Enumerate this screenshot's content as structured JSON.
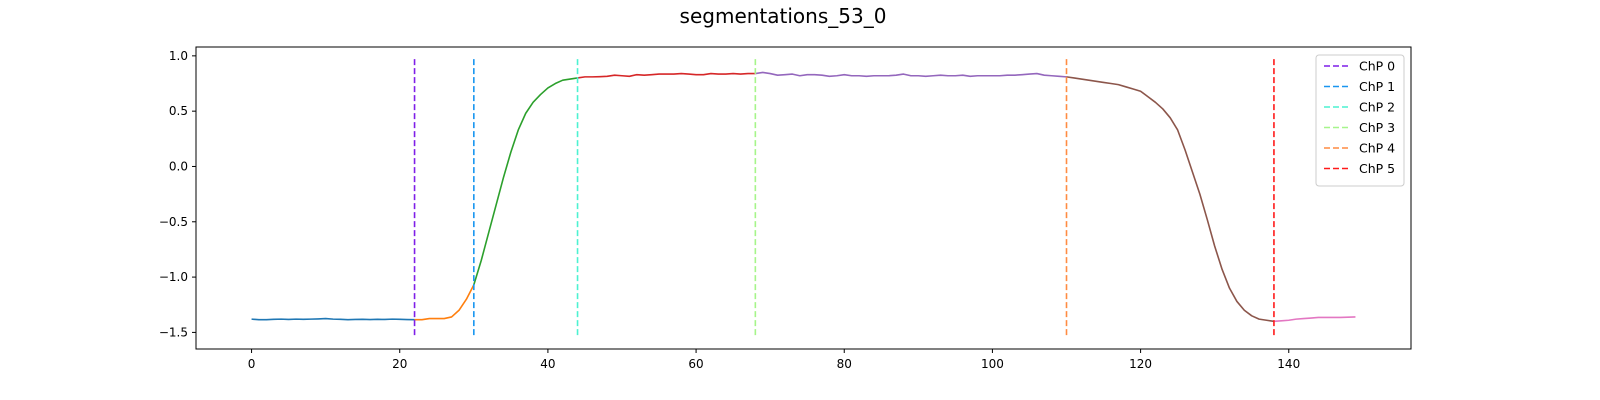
{
  "chart_data": {
    "type": "line",
    "title": "segmentations_53_0",
    "xlabel": "",
    "ylabel": "",
    "xlim": [
      -7.5,
      156.5
    ],
    "ylim": [
      -1.65,
      1.08
    ],
    "xticks": [
      0,
      20,
      40,
      60,
      80,
      100,
      120,
      140
    ],
    "xtick_labels": [
      "0",
      "20",
      "40",
      "60",
      "80",
      "100",
      "120",
      "140"
    ],
    "yticks": [
      1.0,
      0.5,
      0.0,
      -0.5,
      -1.0,
      -1.5
    ],
    "ytick_labels": [
      "1.0",
      "0.5",
      "0.0",
      "−0.5",
      "−1.0",
      "−1.5"
    ],
    "grid": false,
    "legend_position": "top-right",
    "segments": [
      {
        "color": "#1f77b4",
        "x": [
          0,
          1,
          2,
          3,
          4,
          5,
          6,
          7,
          8,
          9,
          10,
          11,
          12,
          13,
          14,
          15,
          16,
          17,
          18,
          19,
          20,
          21,
          22
        ],
        "y": [
          -1.38,
          -1.385,
          -1.385,
          -1.382,
          -1.38,
          -1.383,
          -1.38,
          -1.382,
          -1.38,
          -1.378,
          -1.375,
          -1.38,
          -1.382,
          -1.385,
          -1.383,
          -1.382,
          -1.384,
          -1.382,
          -1.383,
          -1.38,
          -1.382,
          -1.384,
          -1.385
        ]
      },
      {
        "color": "#ff7f0e",
        "x": [
          22,
          23,
          24,
          25,
          26,
          27,
          28,
          29,
          30
        ],
        "y": [
          -1.385,
          -1.385,
          -1.375,
          -1.375,
          -1.375,
          -1.36,
          -1.3,
          -1.2,
          -1.07
        ]
      },
      {
        "color": "#2ca02c",
        "x": [
          30,
          31,
          32,
          33,
          34,
          35,
          36,
          37,
          38,
          39,
          40,
          41,
          42,
          43,
          44
        ],
        "y": [
          -1.07,
          -0.85,
          -0.6,
          -0.35,
          -0.1,
          0.13,
          0.33,
          0.48,
          0.58,
          0.65,
          0.71,
          0.75,
          0.78,
          0.79,
          0.8
        ]
      },
      {
        "color": "#d62728",
        "x": [
          44,
          45,
          46,
          47,
          48,
          49,
          50,
          51,
          52,
          53,
          54,
          55,
          56,
          57,
          58,
          59,
          60,
          61,
          62,
          63,
          64,
          65,
          66,
          67,
          68
        ],
        "y": [
          0.8,
          0.81,
          0.81,
          0.812,
          0.815,
          0.825,
          0.82,
          0.815,
          0.83,
          0.825,
          0.83,
          0.835,
          0.835,
          0.835,
          0.84,
          0.835,
          0.83,
          0.83,
          0.84,
          0.835,
          0.835,
          0.84,
          0.835,
          0.84,
          0.84
        ]
      },
      {
        "color": "#9467bd",
        "x": [
          68,
          69,
          70,
          71,
          72,
          73,
          74,
          75,
          76,
          77,
          78,
          79,
          80,
          81,
          82,
          83,
          84,
          85,
          86,
          87,
          88,
          89,
          90,
          91,
          92,
          93,
          94,
          95,
          96,
          97,
          98,
          99,
          100,
          101,
          102,
          103,
          104,
          105,
          106,
          107,
          108,
          109,
          110
        ],
        "y": [
          0.84,
          0.85,
          0.84,
          0.825,
          0.83,
          0.835,
          0.82,
          0.83,
          0.83,
          0.825,
          0.815,
          0.82,
          0.83,
          0.82,
          0.82,
          0.815,
          0.82,
          0.82,
          0.82,
          0.825,
          0.835,
          0.82,
          0.82,
          0.815,
          0.82,
          0.825,
          0.82,
          0.82,
          0.825,
          0.815,
          0.82,
          0.82,
          0.82,
          0.82,
          0.825,
          0.825,
          0.83,
          0.835,
          0.84,
          0.825,
          0.82,
          0.815,
          0.81
        ]
      },
      {
        "color": "#8c564b",
        "x": [
          110,
          111,
          112,
          113,
          114,
          115,
          116,
          117,
          118,
          119,
          120,
          121,
          122,
          123,
          124,
          125,
          126,
          127,
          128,
          129,
          130,
          131,
          132,
          133,
          134,
          135,
          136,
          137,
          138
        ],
        "y": [
          0.81,
          0.8,
          0.79,
          0.78,
          0.77,
          0.76,
          0.75,
          0.74,
          0.72,
          0.7,
          0.68,
          0.63,
          0.58,
          0.52,
          0.44,
          0.33,
          0.15,
          -0.05,
          -0.25,
          -0.48,
          -0.72,
          -0.93,
          -1.1,
          -1.22,
          -1.3,
          -1.35,
          -1.38,
          -1.39,
          -1.4
        ]
      },
      {
        "color": "#e377c2",
        "x": [
          138,
          139,
          140,
          141,
          142,
          143,
          144,
          145,
          146,
          147,
          148,
          149
        ],
        "y": [
          -1.4,
          -1.395,
          -1.39,
          -1.38,
          -1.375,
          -1.37,
          -1.365,
          -1.365,
          -1.365,
          -1.365,
          -1.362,
          -1.36
        ]
      }
    ],
    "changepoints": [
      {
        "name": "ChP 0",
        "x": 22,
        "color": "#7f1ee8"
      },
      {
        "name": "ChP 1",
        "x": 30,
        "color": "#1996f0"
      },
      {
        "name": "ChP 2",
        "x": 44,
        "color": "#4cf2d1"
      },
      {
        "name": "ChP 3",
        "x": 68,
        "color": "#a6f58a"
      },
      {
        "name": "ChP 4",
        "x": 110,
        "color": "#ff8c42"
      },
      {
        "name": "ChP 5",
        "x": 138,
        "color": "#ff1a1a"
      }
    ],
    "changepoint_line_range": [
      -1.53,
      0.97
    ]
  }
}
